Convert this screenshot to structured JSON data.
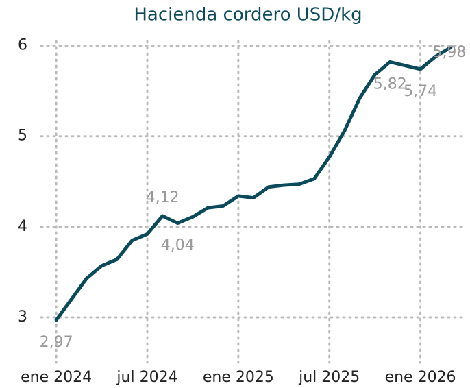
{
  "chart_data": {
    "type": "line",
    "title": "Hacienda cordero USD/kg",
    "x": [
      "2024-01",
      "2024-02",
      "2024-03",
      "2024-04",
      "2024-05",
      "2024-06",
      "2024-07",
      "2024-08",
      "2024-09",
      "2024-10",
      "2024-11",
      "2024-12",
      "2025-01",
      "2025-02",
      "2025-03",
      "2025-04",
      "2025-05",
      "2025-06",
      "2025-07",
      "2025-08",
      "2025-09",
      "2025-10",
      "2025-11",
      "2025-12",
      "2026-01",
      "2026-02",
      "2026-03"
    ],
    "series": [
      {
        "name": "Hacienda cordero USD/kg",
        "color": "#0b4a5a",
        "values": [
          2.97,
          3.2,
          3.43,
          3.57,
          3.64,
          3.85,
          3.92,
          4.12,
          4.04,
          4.11,
          4.21,
          4.23,
          4.34,
          4.32,
          4.44,
          4.46,
          4.47,
          4.53,
          4.77,
          5.06,
          5.42,
          5.68,
          5.82,
          5.78,
          5.74,
          5.88,
          5.98
        ],
        "value_labels": [
          "2,97",
          null,
          null,
          null,
          null,
          null,
          null,
          "4,12",
          "4,04",
          null,
          null,
          null,
          null,
          null,
          null,
          null,
          null,
          null,
          null,
          null,
          null,
          null,
          "5,82",
          null,
          "5,74",
          null,
          "5,98"
        ]
      }
    ],
    "xlim": [
      "2023-12",
      "2026-04"
    ],
    "xticks": [
      {
        "value": "2024-01",
        "label": "ene 2024"
      },
      {
        "value": "2024-07",
        "label": "jul 2024"
      },
      {
        "value": "2025-01",
        "label": "ene 2025"
      },
      {
        "value": "2025-07",
        "label": "jul 2025"
      },
      {
        "value": "2026-01",
        "label": "ene 2026"
      }
    ],
    "ylim": [
      2.5,
      6.05
    ],
    "yticks": [
      3,
      4,
      5,
      6
    ],
    "grid": true
  }
}
